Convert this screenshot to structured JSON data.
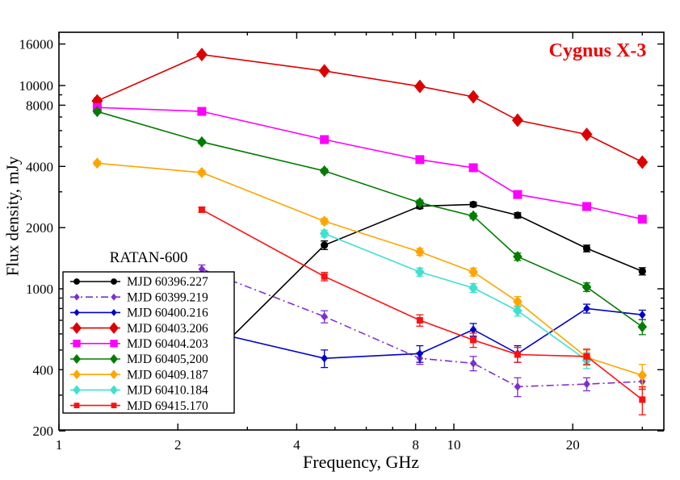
{
  "title": "Cygnus X-3",
  "title_color": "#ee0000",
  "legend_title": "RATAN-600",
  "xlabel": "Frequency, GHz",
  "ylabel": "Flux density, mJy",
  "chart_data": {
    "type": "line",
    "x_scale": "log",
    "y_scale": "log",
    "x_range_ghz": [
      1,
      34
    ],
    "y_range_mjy": [
      200,
      18280
    ],
    "x_ticks_labeled": [
      1,
      2,
      4,
      8,
      10,
      20
    ],
    "x_ticks_minor": [
      3,
      5,
      6,
      7,
      9,
      30
    ],
    "y_ticks_labeled": [
      200,
      400,
      1000,
      2000,
      4000,
      8000,
      10000,
      16000
    ],
    "y_ticks_minor": [
      300,
      500,
      600,
      700,
      800,
      900,
      3000,
      5000,
      6000,
      7000,
      9000
    ],
    "grid": false,
    "legend_position": "lower-left",
    "frequencies_ghz": [
      1.25,
      2.3,
      4.7,
      8.2,
      11.2,
      14.5,
      21.7,
      30
    ],
    "series": [
      {
        "name": "MJD 60396.227",
        "color": "#000000",
        "marker": "circle",
        "line": "solid",
        "values": [
          null,
          415,
          1640,
          2550,
          2600,
          2300,
          1580,
          1220
        ],
        "errors": [
          null,
          45,
          80,
          70,
          70,
          70,
          60,
          50
        ]
      },
      {
        "name": "MJD 60399.219",
        "color": "#7d2fce",
        "marker": "diamond-small",
        "line": "dashdot",
        "values": [
          null,
          1250,
          730,
          455,
          430,
          330,
          340,
          350
        ],
        "errors": [
          null,
          60,
          50,
          30,
          35,
          35,
          25,
          30
        ]
      },
      {
        "name": "MJD 60400.216",
        "color": "#0000cc",
        "marker": "diamond-small",
        "line": "solid",
        "values": [
          null,
          630,
          455,
          480,
          630,
          480,
          800,
          745
        ],
        "errors": [
          null,
          45,
          45,
          45,
          45,
          45,
          40,
          40
        ]
      },
      {
        "name": "MJD 60403.206",
        "color": "#dd0000",
        "marker": "diamond-large",
        "line": "solid",
        "values": [
          8400,
          14200,
          11800,
          9900,
          8800,
          6750,
          5750,
          4200
        ],
        "errors": [
          300,
          250,
          220,
          200,
          180,
          150,
          140,
          120
        ]
      },
      {
        "name": "MJD 60404.203",
        "color": "#ff00ff",
        "marker": "square",
        "line": "solid",
        "values": [
          7800,
          7460,
          5420,
          4320,
          3940,
          2910,
          2540,
          2200
        ],
        "errors": [
          150,
          140,
          120,
          110,
          100,
          90,
          80,
          80
        ]
      },
      {
        "name": "MJD 60405,200",
        "color": "#007d00",
        "marker": "diamond",
        "line": "solid",
        "values": [
          7450,
          5280,
          3800,
          2650,
          2280,
          1440,
          1020,
          650
        ],
        "errors": [
          140,
          110,
          90,
          80,
          70,
          60,
          50,
          55
        ]
      },
      {
        "name": "MJD 60409.187",
        "color": "#ffa500",
        "marker": "diamond",
        "line": "solid",
        "values": [
          4150,
          3730,
          2150,
          1520,
          1210,
          865,
          460,
          375
        ],
        "errors": [
          90,
          85,
          70,
          60,
          55,
          50,
          40,
          50
        ]
      },
      {
        "name": "MJD 60410.184",
        "color": "#40e0d0",
        "marker": "diamond",
        "line": "solid",
        "values": [
          null,
          null,
          1870,
          1210,
          1010,
          780,
          445,
          null
        ],
        "errors": [
          null,
          null,
          70,
          55,
          50,
          45,
          40,
          null
        ]
      },
      {
        "name": "MJD 69415.170",
        "color": "#ff1010",
        "marker": "square-small",
        "line": "solid",
        "values": [
          null,
          2450,
          1150,
          700,
          560,
          475,
          465,
          285
        ],
        "errors": [
          null,
          70,
          55,
          45,
          45,
          40,
          40,
          45
        ]
      }
    ]
  }
}
